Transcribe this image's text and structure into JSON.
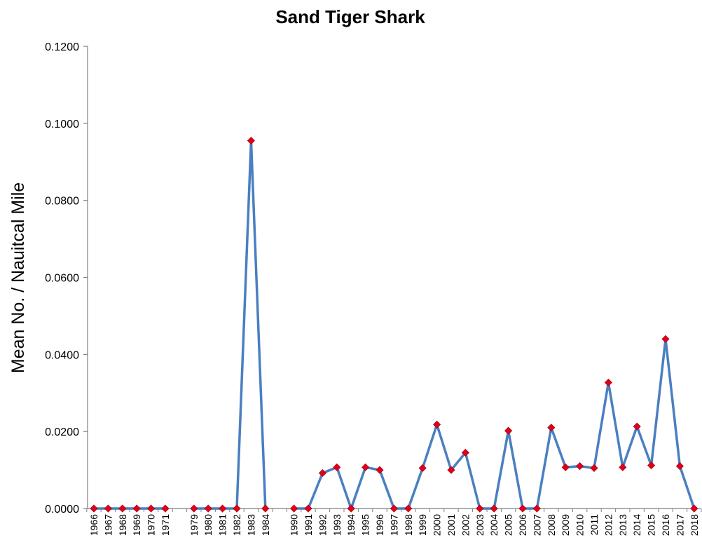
{
  "chart_data": {
    "type": "line",
    "title": "Sand Tiger Shark",
    "xlabel": "",
    "ylabel": "Mean No. / Nauitcal Mile",
    "ylim": [
      0,
      0.12
    ],
    "yticks": [
      "0.0000",
      "0.0200",
      "0.0400",
      "0.0600",
      "0.0800",
      "0.1000",
      "0.1200"
    ],
    "grid": false,
    "legend": "none",
    "line_color": "#4a7fc1",
    "marker_color": "#e0001a",
    "segments": [
      {
        "x": [
          "1966",
          "1967",
          "1968",
          "1969",
          "1970",
          "1971"
        ],
        "y": [
          0,
          0,
          0,
          0,
          0,
          0
        ]
      },
      {
        "x": [
          "1979",
          "1980",
          "1981",
          "1982",
          "1983",
          "1984"
        ],
        "y": [
          0,
          0,
          0,
          0,
          0.0955,
          0
        ]
      },
      {
        "x": [
          "1990",
          "1991",
          "1992",
          "1993",
          "1994",
          "1995",
          "1996",
          "1997",
          "1998",
          "1999",
          "2000",
          "2001",
          "2002",
          "2003",
          "2004",
          "2005",
          "2006",
          "2007",
          "2008",
          "2009",
          "2010",
          "2011",
          "2012",
          "2013",
          "2014",
          "2015",
          "2016",
          "2017",
          "2018"
        ],
        "y": [
          0,
          0,
          0.0092,
          0.0107,
          0,
          0.0107,
          0.01,
          0,
          0,
          0.0105,
          0.0218,
          0.01,
          0.0145,
          0,
          0,
          0.0202,
          0,
          0,
          0.021,
          0.0107,
          0.011,
          0.0105,
          0.0327,
          0.0107,
          0.0213,
          0.0112,
          0.044,
          0.011,
          0
        ]
      }
    ]
  }
}
